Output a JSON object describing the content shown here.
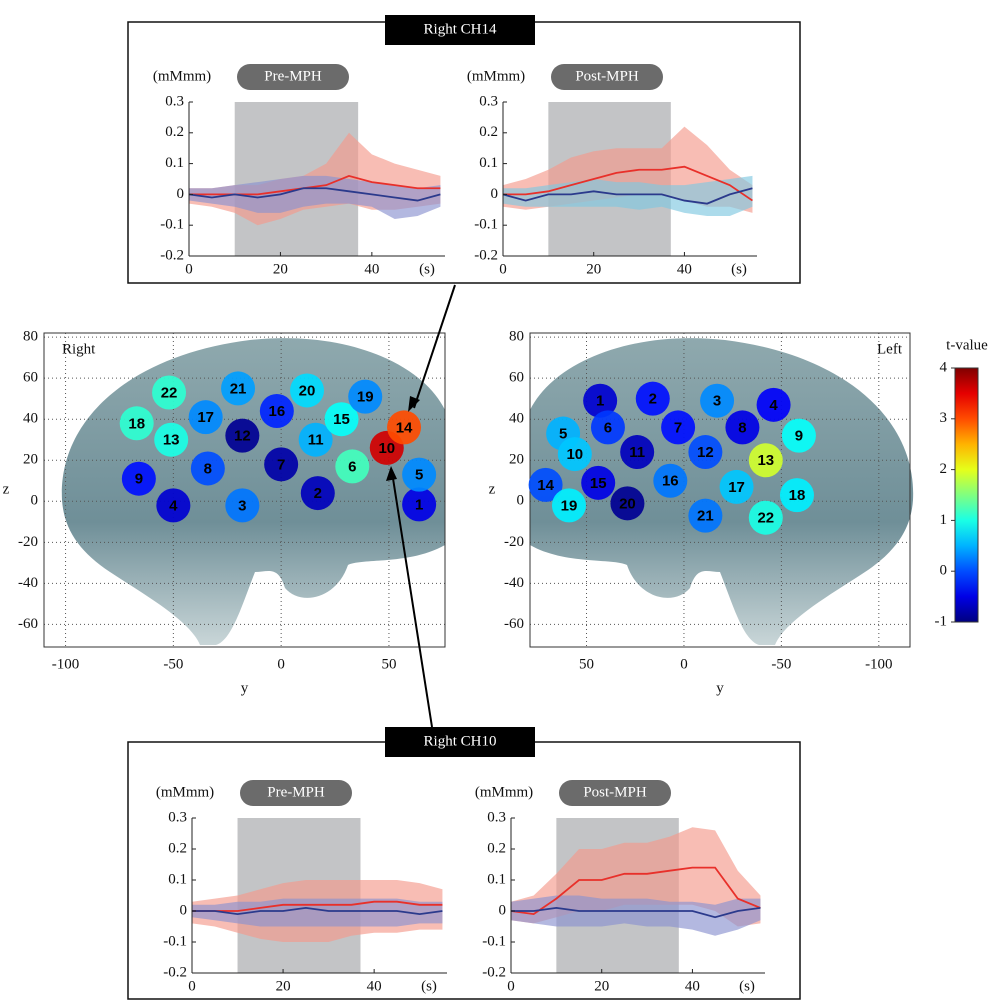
{
  "groups": [
    {
      "title": "Right CH14"
    },
    {
      "title": "Right CH10"
    }
  ],
  "chart_data": [
    {
      "type": "line",
      "title": "Pre-MPH",
      "y_label": "(mMmm)",
      "x_label": "(s)",
      "x": [
        0,
        5,
        10,
        15,
        20,
        25,
        30,
        35,
        40,
        45,
        50,
        55
      ],
      "xlim": [
        0,
        56
      ],
      "xticks": [
        0,
        20,
        40
      ],
      "ylim": [
        -0.2,
        0.3
      ],
      "yticks": [
        -0.2,
        -0.1,
        0,
        0.1,
        0.2,
        0.3
      ],
      "block": [
        10,
        37
      ],
      "series": [
        {
          "color": "#e8302a",
          "band_color": "#f59a8c",
          "values": [
            0,
            0,
            0,
            0,
            0.01,
            0.02,
            0.03,
            0.06,
            0.04,
            0.03,
            0.02,
            0.02
          ],
          "upper": [
            0.02,
            0.02,
            0.03,
            0.03,
            0.05,
            0.06,
            0.1,
            0.2,
            0.13,
            0.1,
            0.08,
            0.06
          ],
          "lower": [
            -0.03,
            -0.04,
            -0.06,
            -0.1,
            -0.08,
            -0.05,
            -0.04,
            -0.03,
            -0.05,
            -0.05,
            -0.04,
            -0.03
          ]
        },
        {
          "color": "#2b3a8c",
          "band_color": "#8a92d0",
          "values": [
            0,
            -0.01,
            0,
            -0.01,
            0,
            0.02,
            0.02,
            0.01,
            0,
            -0.01,
            -0.02,
            0
          ],
          "upper": [
            0.02,
            0.02,
            0.03,
            0.04,
            0.05,
            0.06,
            0.06,
            0.05,
            0.04,
            0.03,
            0.02,
            0.03
          ],
          "lower": [
            -0.02,
            -0.03,
            -0.04,
            -0.06,
            -0.06,
            -0.04,
            -0.03,
            -0.03,
            -0.04,
            -0.08,
            -0.07,
            -0.04
          ]
        }
      ]
    },
    {
      "type": "line",
      "title": "Post-MPH",
      "y_label": "(mMmm)",
      "x_label": "(s)",
      "x": [
        0,
        5,
        10,
        15,
        20,
        25,
        30,
        35,
        40,
        45,
        50,
        55
      ],
      "xlim": [
        0,
        56
      ],
      "xticks": [
        0,
        20,
        40
      ],
      "ylim": [
        -0.2,
        0.3
      ],
      "yticks": [
        -0.2,
        -0.1,
        0,
        0.1,
        0.2,
        0.3
      ],
      "block": [
        10,
        37
      ],
      "series": [
        {
          "color": "#e8302a",
          "band_color": "#f59a8c",
          "values": [
            0,
            0,
            0.01,
            0.03,
            0.05,
            0.07,
            0.08,
            0.08,
            0.09,
            0.06,
            0.03,
            -0.02
          ],
          "upper": [
            0.03,
            0.05,
            0.08,
            0.12,
            0.14,
            0.15,
            0.15,
            0.15,
            0.22,
            0.16,
            0.08,
            0.03
          ],
          "lower": [
            -0.04,
            -0.05,
            -0.04,
            -0.03,
            -0.02,
            -0.01,
            0,
            0,
            -0.02,
            -0.04,
            -0.04,
            -0.06
          ]
        },
        {
          "color": "#2b3a8c",
          "band_color": "#7fc8e0",
          "values": [
            0,
            -0.02,
            0,
            0,
            0.01,
            0,
            0,
            0,
            -0.02,
            -0.03,
            0,
            0.02
          ],
          "upper": [
            0.02,
            0.02,
            0.03,
            0.04,
            0.05,
            0.04,
            0.04,
            0.03,
            0.03,
            0.04,
            0.05,
            0.06
          ],
          "lower": [
            -0.03,
            -0.04,
            -0.04,
            -0.04,
            -0.04,
            -0.04,
            -0.05,
            -0.04,
            -0.06,
            -0.07,
            -0.07,
            -0.04
          ]
        }
      ]
    },
    {
      "type": "line",
      "title": "Pre-MPH",
      "y_label": "(mMmm)",
      "x_label": "(s)",
      "x": [
        0,
        5,
        10,
        15,
        20,
        25,
        30,
        35,
        40,
        45,
        50,
        55
      ],
      "xlim": [
        0,
        56
      ],
      "xticks": [
        0,
        20,
        40
      ],
      "ylim": [
        -0.2,
        0.3
      ],
      "yticks": [
        -0.2,
        -0.1,
        0,
        0.1,
        0.2,
        0.3
      ],
      "block": [
        10,
        37
      ],
      "series": [
        {
          "color": "#e8302a",
          "band_color": "#f59a8c",
          "values": [
            0,
            0,
            0,
            0.01,
            0.02,
            0.02,
            0.02,
            0.02,
            0.03,
            0.03,
            0.02,
            0.02
          ],
          "upper": [
            0.03,
            0.04,
            0.05,
            0.07,
            0.09,
            0.1,
            0.1,
            0.1,
            0.1,
            0.1,
            0.09,
            0.07
          ],
          "lower": [
            -0.04,
            -0.05,
            -0.07,
            -0.09,
            -0.1,
            -0.1,
            -0.1,
            -0.08,
            -0.07,
            -0.07,
            -0.06,
            -0.06
          ]
        },
        {
          "color": "#2b3a8c",
          "band_color": "#8a92d0",
          "values": [
            0,
            0,
            -0.01,
            0,
            0,
            0.01,
            0,
            0,
            0,
            0,
            -0.01,
            0
          ],
          "upper": [
            0.02,
            0.02,
            0.03,
            0.03,
            0.04,
            0.04,
            0.04,
            0.04,
            0.04,
            0.04,
            0.03,
            0.03
          ],
          "lower": [
            -0.02,
            -0.03,
            -0.04,
            -0.05,
            -0.05,
            -0.05,
            -0.05,
            -0.05,
            -0.05,
            -0.05,
            -0.04,
            -0.04
          ]
        }
      ]
    },
    {
      "type": "line",
      "title": "Post-MPH",
      "y_label": "(mMmm)",
      "x_label": "(s)",
      "x": [
        0,
        5,
        10,
        15,
        20,
        25,
        30,
        35,
        40,
        45,
        50,
        55
      ],
      "xlim": [
        0,
        56
      ],
      "xticks": [
        0,
        20,
        40
      ],
      "ylim": [
        -0.2,
        0.3
      ],
      "yticks": [
        -0.2,
        -0.1,
        0,
        0.1,
        0.2,
        0.3
      ],
      "block": [
        10,
        37
      ],
      "series": [
        {
          "color": "#e8302a",
          "band_color": "#f59a8c",
          "values": [
            0,
            -0.01,
            0.04,
            0.1,
            0.1,
            0.12,
            0.12,
            0.13,
            0.14,
            0.14,
            0.04,
            0.01
          ],
          "upper": [
            0.03,
            0.05,
            0.12,
            0.2,
            0.2,
            0.22,
            0.22,
            0.24,
            0.27,
            0.26,
            0.13,
            0.05
          ],
          "lower": [
            -0.03,
            -0.04,
            -0.02,
            0,
            0,
            0.02,
            0.02,
            0.02,
            0.02,
            0,
            -0.05,
            -0.04
          ]
        },
        {
          "color": "#2b3a8c",
          "band_color": "#8a92d0",
          "values": [
            0,
            0,
            0.01,
            0,
            0,
            0,
            0,
            0,
            0,
            -0.02,
            0,
            0.01
          ],
          "upper": [
            0.03,
            0.04,
            0.05,
            0.05,
            0.04,
            0.04,
            0.04,
            0.03,
            0.03,
            0.02,
            0.04,
            0.04
          ],
          "lower": [
            -0.03,
            -0.04,
            -0.05,
            -0.05,
            -0.05,
            -0.04,
            -0.05,
            -0.05,
            -0.06,
            -0.08,
            -0.06,
            -0.03
          ]
        }
      ]
    },
    {
      "type": "scatter",
      "annotation": "Right",
      "x_label": "y",
      "y_label": "z",
      "xlim": [
        -110,
        76
      ],
      "xticks": [
        -100,
        -50,
        0,
        50
      ],
      "ylim": [
        -71,
        82
      ],
      "yticks": [
        -60,
        -40,
        -20,
        0,
        20,
        40,
        60,
        80
      ],
      "grid": true,
      "channels": [
        1,
        2,
        3,
        4,
        5,
        6,
        7,
        8,
        9,
        10,
        11,
        12,
        13,
        14,
        15,
        16,
        17,
        18,
        19,
        20,
        21,
        22
      ],
      "x": [
        64,
        17,
        -18,
        -50,
        64,
        33,
        0,
        -34,
        -66,
        49,
        16,
        -18,
        -51,
        57,
        28,
        -2,
        -35,
        -67,
        39,
        12,
        -20,
        -52
      ],
      "values": [
        -1.5,
        4,
        -2,
        -2,
        13,
        17,
        18,
        16,
        11,
        26,
        30,
        32,
        30,
        36,
        40,
        44,
        41,
        38,
        51,
        54,
        55,
        53
      ],
      "t": [
        -0.5,
        -0.7,
        0.2,
        -0.6,
        0.3,
        1.2,
        -0.8,
        0,
        -0.3,
        3.6,
        0.5,
        -0.9,
        1.0,
        3.0,
        0.9,
        -0.2,
        0.3,
        1.1,
        0.3,
        0.7,
        0.4,
        1.1
      ]
    },
    {
      "type": "scatter",
      "annotation": "Left",
      "x_label": "y",
      "y_label": "z",
      "xlim": [
        79,
        -116
      ],
      "xticks": [
        50,
        0,
        -50,
        -100
      ],
      "ylim": [
        -71,
        82
      ],
      "yticks": [
        -60,
        -40,
        -20,
        0,
        20,
        40,
        60,
        80
      ],
      "grid": true,
      "channels": [
        1,
        2,
        3,
        4,
        5,
        6,
        7,
        8,
        9,
        10,
        11,
        12,
        13,
        14,
        15,
        16,
        17,
        18,
        19,
        20,
        21,
        22
      ],
      "x": [
        43,
        16,
        -17,
        -46,
        62,
        39,
        3,
        -30,
        -59,
        56,
        24,
        -11,
        -42,
        71,
        44,
        7,
        -27,
        -58,
        59,
        29,
        -11,
        -42
      ],
      "values": [
        49,
        50,
        49,
        47,
        33,
        36,
        36,
        36,
        32,
        23,
        24,
        24,
        20,
        8,
        9,
        10,
        7,
        3,
        -2,
        -1,
        -7,
        -8
      ],
      "t": [
        -0.6,
        -0.3,
        0.3,
        -0.4,
        0.5,
        -0.1,
        -0.3,
        -0.5,
        0.9,
        0.6,
        -0.7,
        0,
        1.9,
        0,
        -0.5,
        0.2,
        0.6,
        0.8,
        0.8,
        -0.9,
        0.2,
        1.0
      ],
      "colorbar": {
        "label": "t-value",
        "lim": [
          -1,
          4
        ],
        "ticks": [
          -1,
          0,
          1,
          2,
          3,
          4
        ]
      }
    }
  ]
}
